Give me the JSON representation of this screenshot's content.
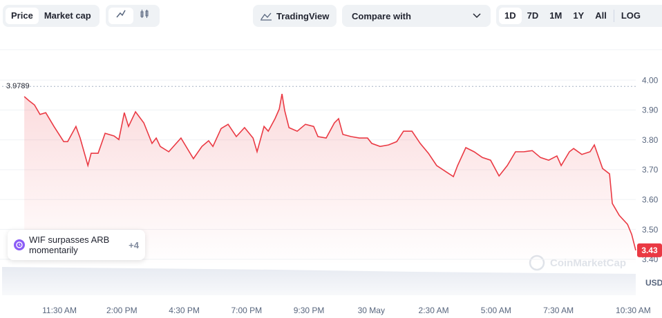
{
  "ui": {
    "tabs": [
      "Price",
      "Market cap"
    ],
    "tradingview": "TradingView",
    "compare": "Compare with",
    "ranges": [
      "1D",
      "7D",
      "1M",
      "1Y",
      "All"
    ],
    "log": "LOG",
    "watermark": "CoinMarketCap"
  },
  "chart_data": {
    "type": "line",
    "y_axis_label": "USD",
    "annotation": {
      "text": "WIF surpasses ARB momentarily",
      "more": "+4"
    },
    "reference_value": 3.9789,
    "reference_label": "3.9789",
    "last_price": 3.43,
    "last_price_label": "3.43",
    "xlim": [
      9.2,
      34.6
    ],
    "xticks": [
      {
        "value": 11.5,
        "label": "11:30 AM"
      },
      {
        "value": 14,
        "label": "2:00 PM"
      },
      {
        "value": 16.5,
        "label": "4:30 PM"
      },
      {
        "value": 19,
        "label": "7:00 PM"
      },
      {
        "value": 21.5,
        "label": "9:30 PM"
      },
      {
        "value": 24,
        "label": "30 May"
      },
      {
        "value": 26.5,
        "label": "2:30 AM"
      },
      {
        "value": 29,
        "label": "5:00 AM"
      },
      {
        "value": 31.5,
        "label": "7:30 AM"
      },
      {
        "value": 34.5,
        "label": "10:30 AM"
      }
    ],
    "ylim": [
      3.275,
      4.102
    ],
    "yticks": [
      {
        "value": 3.4,
        "label": "3.40"
      },
      {
        "value": 3.5,
        "label": "3.50"
      },
      {
        "value": 3.6,
        "label": "3.60"
      },
      {
        "value": 3.7,
        "label": "3.70"
      },
      {
        "value": 3.8,
        "label": "3.80"
      },
      {
        "value": 3.9,
        "label": "3.90"
      },
      {
        "value": 4,
        "label": "4.00"
      }
    ],
    "grid": true,
    "series": [
      {
        "name": "WIF",
        "color": "#ea3943",
        "x": [
          10.09,
          10.28,
          10.5,
          10.72,
          10.95,
          11.28,
          11.67,
          11.83,
          12.16,
          12.33,
          12.64,
          12.77,
          13.05,
          13.33,
          13.69,
          13.88,
          14.1,
          14.27,
          14.55,
          14.88,
          15.21,
          15.38,
          15.54,
          15.88,
          16.37,
          16.87,
          17.21,
          17.48,
          17.65,
          17.98,
          18.26,
          18.59,
          18.92,
          19.26,
          19.42,
          19.7,
          19.87,
          20.14,
          20.31,
          20.42,
          20.53,
          20.7,
          21.03,
          21.36,
          21.69,
          21.86,
          22.19,
          22.52,
          22.69,
          22.86,
          23.19,
          23.52,
          23.85,
          24.02,
          24.35,
          24.69,
          25.02,
          25.29,
          25.63,
          25.96,
          26.29,
          26.62,
          26.96,
          27.29,
          27.46,
          27.79,
          28.12,
          28.45,
          28.78,
          29.12,
          29.45,
          29.78,
          30.11,
          30.45,
          30.78,
          31.11,
          31.44,
          31.61,
          31.94,
          32.11,
          32.44,
          32.77,
          32.94,
          33.27,
          33.55,
          33.66,
          33.94,
          34.27,
          34.44,
          34.6
        ],
        "values": [
          3.945,
          3.931,
          3.917,
          3.885,
          3.891,
          3.845,
          3.794,
          3.794,
          3.845,
          3.806,
          3.714,
          3.755,
          3.755,
          3.822,
          3.813,
          3.801,
          3.891,
          3.845,
          3.894,
          3.857,
          3.788,
          3.806,
          3.778,
          3.76,
          3.806,
          3.737,
          3.778,
          3.797,
          3.778,
          3.838,
          3.852,
          3.811,
          3.841,
          3.806,
          3.76,
          3.845,
          3.829,
          3.871,
          3.903,
          3.954,
          3.898,
          3.841,
          3.829,
          3.852,
          3.845,
          3.811,
          3.806,
          3.857,
          3.871,
          3.818,
          3.811,
          3.806,
          3.806,
          3.788,
          3.778,
          3.783,
          3.794,
          3.829,
          3.829,
          3.788,
          3.755,
          3.714,
          3.695,
          3.677,
          3.714,
          3.774,
          3.76,
          3.741,
          3.732,
          3.679,
          3.714,
          3.76,
          3.76,
          3.764,
          3.741,
          3.732,
          3.746,
          3.714,
          3.76,
          3.771,
          3.751,
          3.76,
          3.783,
          3.704,
          3.686,
          3.587,
          3.547,
          3.517,
          3.483,
          3.43
        ]
      }
    ]
  }
}
